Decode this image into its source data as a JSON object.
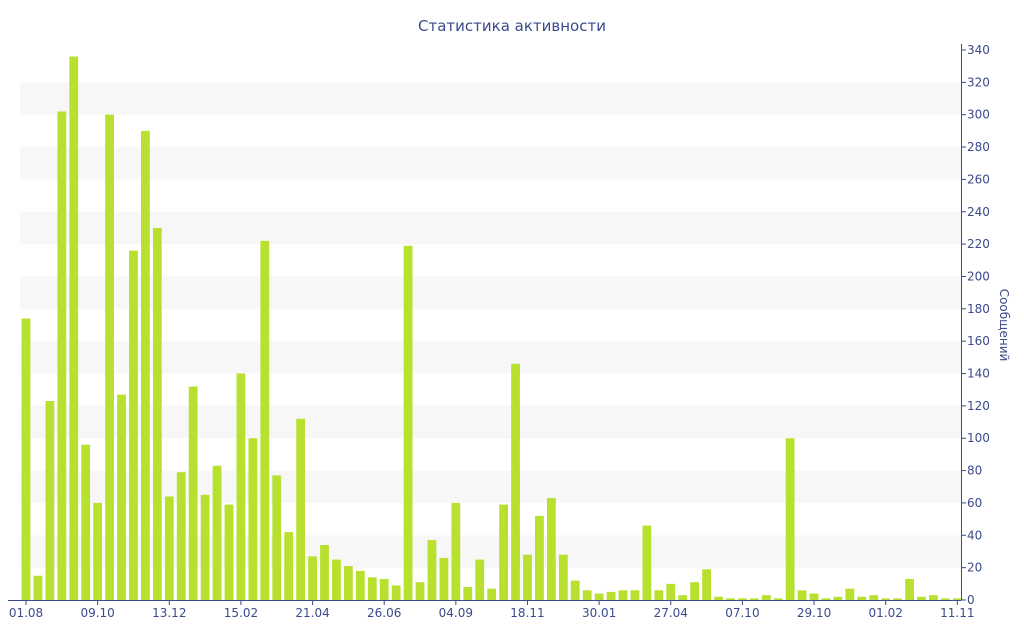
{
  "chart_data": {
    "type": "bar",
    "title": "Статистика активности",
    "xlabel": "",
    "ylabel": "Сообщений",
    "ylim": [
      0,
      340
    ],
    "y_ticks": [
      0,
      20,
      40,
      60,
      80,
      100,
      120,
      140,
      160,
      180,
      200,
      220,
      240,
      260,
      280,
      300,
      320,
      340
    ],
    "y_axis_side": "right",
    "grid": "alternating horizontal bands",
    "x_tick_labels": [
      {
        "index": 0,
        "label": "01.08"
      },
      {
        "index": 6,
        "label": "09.10"
      },
      {
        "index": 12,
        "label": "13.12"
      },
      {
        "index": 18,
        "label": "15.02"
      },
      {
        "index": 24,
        "label": "21.04"
      },
      {
        "index": 30,
        "label": "26.06"
      },
      {
        "index": 36,
        "label": "04.09"
      },
      {
        "index": 42,
        "label": "18.11"
      },
      {
        "index": 48,
        "label": "30.01"
      },
      {
        "index": 54,
        "label": "27.04"
      },
      {
        "index": 60,
        "label": "07.10"
      },
      {
        "index": 66,
        "label": "29.10"
      },
      {
        "index": 72,
        "label": "01.02"
      },
      {
        "index": 78,
        "label": "11.11"
      }
    ],
    "colors": {
      "bar": "#b8e02f",
      "band": "#f7f7f7",
      "text": "#3b4a8c",
      "axis": "#3b4a8c"
    },
    "values": [
      174,
      15,
      123,
      302,
      336,
      96,
      60,
      300,
      127,
      216,
      290,
      230,
      64,
      79,
      132,
      65,
      83,
      59,
      140,
      100,
      222,
      77,
      42,
      112,
      27,
      34,
      25,
      21,
      18,
      14,
      13,
      9,
      219,
      11,
      37,
      26,
      60,
      8,
      25,
      7,
      59,
      146,
      28,
      52,
      63,
      28,
      12,
      6,
      4,
      5,
      6,
      6,
      46,
      6,
      10,
      3,
      11,
      19,
      2,
      1,
      1,
      1,
      3,
      1,
      100,
      6,
      4,
      1,
      2,
      7,
      2,
      3,
      1,
      1,
      13,
      2,
      3,
      1,
      1
    ]
  }
}
